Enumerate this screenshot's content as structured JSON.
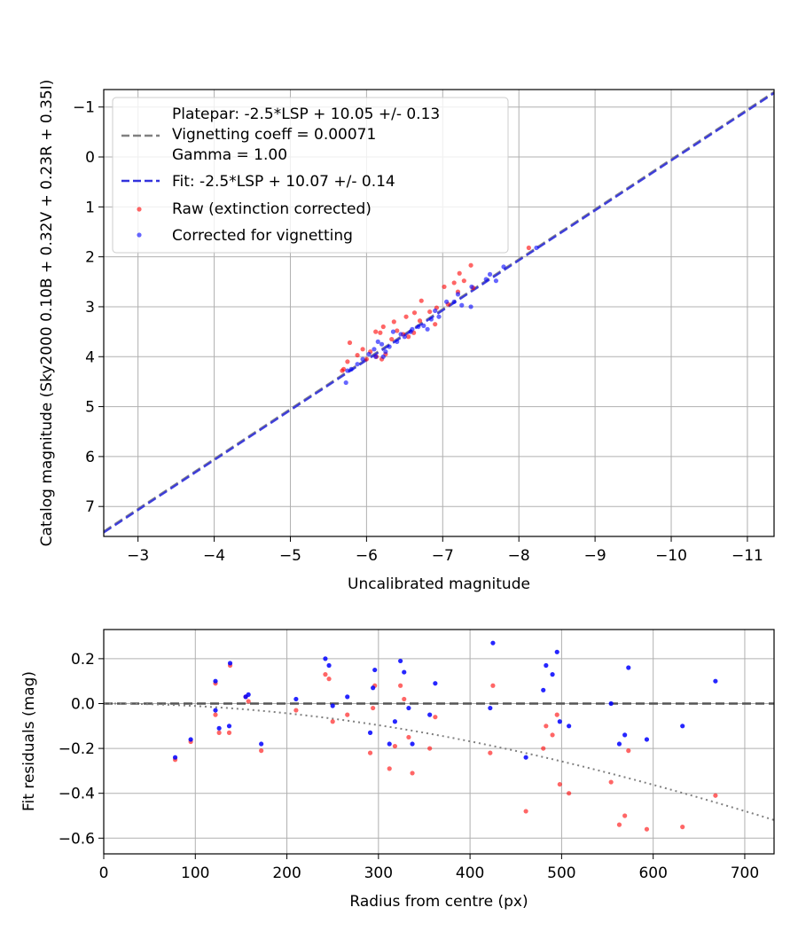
{
  "chart_data": [
    {
      "type": "scatter",
      "title": "",
      "xlabel": "Uncalibrated magnitude",
      "ylabel": "Catalog magnitude (Sky2000 0.10B + 0.32V + 0.23R + 0.35I)",
      "xlim": [
        -2.55,
        -11.35
      ],
      "ylim": [
        7.6,
        -1.35
      ],
      "x_ticks": [
        -3,
        -4,
        -5,
        -6,
        -7,
        -8,
        -9,
        -10,
        -11
      ],
      "x_tick_labels": [
        "−3",
        "−4",
        "−5",
        "−6",
        "−7",
        "−8",
        "−9",
        "−10",
        "−11"
      ],
      "y_ticks": [
        -1,
        0,
        1,
        2,
        3,
        4,
        5,
        6,
        7
      ],
      "y_tick_labels": [
        "−1",
        "0",
        "1",
        "2",
        "3",
        "4",
        "5",
        "6",
        "7"
      ],
      "grid": true,
      "legend_position": "top-left",
      "legend": {
        "platepar_lines": [
          "Platepar: -2.5*LSP + 10.05 +/- 0.13",
          "Vignetting coeff = 0.00071",
          "Gamma = 1.00"
        ],
        "fit": "Fit: -2.5*LSP + 10.07 +/- 0.14",
        "raw": "Raw (extinction corrected)",
        "corrected": "Corrected for vignetting"
      },
      "colors": {
        "platepar": "#808080",
        "fit": "#3232dc",
        "raw": "#ff0000",
        "corrected": "#0000ff"
      },
      "lines": [
        {
          "name": "Platepar",
          "slope": 1.0,
          "intercept": 10.05,
          "style": "dashed"
        },
        {
          "name": "Fit",
          "slope": 1.0,
          "intercept": 10.07,
          "style": "dashed"
        }
      ],
      "series": [
        {
          "name": "Raw (extinction corrected)",
          "points": [
            [
              -8.13,
              1.82
            ],
            [
              -7.37,
              2.17
            ],
            [
              -7.22,
              2.33
            ],
            [
              -7.28,
              2.48
            ],
            [
              -7.15,
              2.52
            ],
            [
              -7.02,
              2.6
            ],
            [
              -7.2,
              2.7
            ],
            [
              -7.4,
              2.62
            ],
            [
              -6.72,
              2.88
            ],
            [
              -7.07,
              2.95
            ],
            [
              -6.92,
              3.02
            ],
            [
              -6.83,
              3.1
            ],
            [
              -6.63,
              3.12
            ],
            [
              -6.52,
              3.2
            ],
            [
              -6.7,
              3.28
            ],
            [
              -6.36,
              3.3
            ],
            [
              -6.22,
              3.4
            ],
            [
              -6.4,
              3.48
            ],
            [
              -6.18,
              3.52
            ],
            [
              -6.12,
              3.5
            ],
            [
              -6.33,
              3.65
            ],
            [
              -6.48,
              3.55
            ],
            [
              -6.62,
              3.52
            ],
            [
              -5.78,
              3.72
            ],
            [
              -5.95,
              3.85
            ],
            [
              -6.05,
              3.9
            ],
            [
              -5.88,
              3.97
            ],
            [
              -6.13,
              4.0
            ],
            [
              -6.25,
              3.95
            ],
            [
              -6.2,
              4.05
            ],
            [
              -5.75,
              4.1
            ],
            [
              -5.7,
              4.25
            ],
            [
              -5.68,
              4.28
            ],
            [
              -6.0,
              4.05
            ],
            [
              -6.55,
              3.6
            ],
            [
              -6.9,
              3.35
            ]
          ]
        },
        {
          "name": "Corrected for vignetting",
          "points": [
            [
              -8.23,
              1.82
            ],
            [
              -7.8,
              2.2
            ],
            [
              -7.62,
              2.35
            ],
            [
              -7.7,
              2.48
            ],
            [
              -7.57,
              2.45
            ],
            [
              -7.38,
              2.6
            ],
            [
              -7.2,
              2.75
            ],
            [
              -7.37,
              3.0
            ],
            [
              -7.25,
              2.97
            ],
            [
              -7.05,
              2.9
            ],
            [
              -6.9,
              3.08
            ],
            [
              -6.85,
              3.25
            ],
            [
              -6.75,
              3.38
            ],
            [
              -6.68,
              3.4
            ],
            [
              -6.8,
              3.45
            ],
            [
              -6.58,
              3.5
            ],
            [
              -6.45,
              3.55
            ],
            [
              -6.35,
              3.5
            ],
            [
              -6.4,
              3.7
            ],
            [
              -6.3,
              3.8
            ],
            [
              -6.2,
              3.75
            ],
            [
              -6.15,
              3.7
            ],
            [
              -6.1,
              3.85
            ],
            [
              -6.25,
              3.9
            ],
            [
              -6.03,
              3.95
            ],
            [
              -6.12,
              4.0
            ],
            [
              -5.95,
              4.05
            ],
            [
              -5.88,
              4.15
            ],
            [
              -5.8,
              4.25
            ],
            [
              -5.75,
              4.28
            ],
            [
              -5.73,
              4.52
            ],
            [
              -6.22,
              4.0
            ],
            [
              -6.5,
              3.6
            ],
            [
              -6.95,
              3.2
            ],
            [
              -7.15,
              2.9
            ],
            [
              -6.6,
              3.45
            ]
          ]
        }
      ]
    },
    {
      "type": "scatter",
      "title": "",
      "xlabel": "Radius from centre (px)",
      "ylabel": "Fit residuals (mag)",
      "xlim": [
        0,
        732
      ],
      "ylim": [
        -0.67,
        0.33
      ],
      "x_ticks": [
        0,
        100,
        200,
        300,
        400,
        500,
        600,
        700
      ],
      "x_tick_labels": [
        "0",
        "100",
        "200",
        "300",
        "400",
        "500",
        "600",
        "700"
      ],
      "y_ticks": [
        0.2,
        0.0,
        -0.2,
        -0.4,
        -0.6
      ],
      "y_tick_labels": [
        "0.2",
        "0.0",
        "−0.2",
        "−0.4",
        "−0.6"
      ],
      "grid": true,
      "reference_line": 0.0,
      "vignetting_curve": {
        "coeff": 0.00071,
        "x_max": 732
      },
      "colors": {
        "zero_line": "#555555",
        "curve": "#808080",
        "raw": "#ff0000",
        "corrected": "#0000ff"
      },
      "series": [
        {
          "name": "Raw (extinction corrected)",
          "points": [
            [
              78,
              -0.25
            ],
            [
              95,
              -0.17
            ],
            [
              122,
              0.09
            ],
            [
              122,
              -0.05
            ],
            [
              126,
              -0.13
            ],
            [
              137,
              -0.13
            ],
            [
              138,
              0.17
            ],
            [
              155,
              0.03
            ],
            [
              158,
              0.01
            ],
            [
              172,
              -0.21
            ],
            [
              210,
              -0.03
            ],
            [
              242,
              0.13
            ],
            [
              246,
              0.11
            ],
            [
              250,
              -0.08
            ],
            [
              266,
              -0.05
            ],
            [
              291,
              -0.22
            ],
            [
              294,
              -0.02
            ],
            [
              296,
              0.08
            ],
            [
              312,
              -0.29
            ],
            [
              318,
              -0.19
            ],
            [
              324,
              0.08
            ],
            [
              328,
              0.02
            ],
            [
              333,
              -0.15
            ],
            [
              337,
              -0.31
            ],
            [
              356,
              -0.2
            ],
            [
              362,
              -0.06
            ],
            [
              422,
              -0.22
            ],
            [
              425,
              0.08
            ],
            [
              461,
              -0.48
            ],
            [
              480,
              -0.2
            ],
            [
              483,
              -0.1
            ],
            [
              490,
              -0.14
            ],
            [
              495,
              -0.05
            ],
            [
              498,
              -0.36
            ],
            [
              508,
              -0.4
            ],
            [
              554,
              -0.35
            ],
            [
              563,
              -0.54
            ],
            [
              569,
              -0.5
            ],
            [
              573,
              -0.21
            ],
            [
              593,
              -0.56
            ],
            [
              632,
              -0.55
            ],
            [
              668,
              -0.41
            ]
          ]
        },
        {
          "name": "Corrected for vignetting",
          "points": [
            [
              78,
              -0.24
            ],
            [
              95,
              -0.16
            ],
            [
              122,
              0.1
            ],
            [
              122,
              -0.03
            ],
            [
              126,
              -0.11
            ],
            [
              137,
              -0.1
            ],
            [
              138,
              0.18
            ],
            [
              155,
              0.03
            ],
            [
              158,
              0.04
            ],
            [
              172,
              -0.18
            ],
            [
              210,
              0.02
            ],
            [
              242,
              0.2
            ],
            [
              246,
              0.17
            ],
            [
              250,
              -0.01
            ],
            [
              266,
              0.03
            ],
            [
              291,
              -0.13
            ],
            [
              294,
              0.07
            ],
            [
              296,
              0.15
            ],
            [
              312,
              -0.18
            ],
            [
              318,
              -0.08
            ],
            [
              324,
              0.19
            ],
            [
              328,
              0.14
            ],
            [
              333,
              -0.02
            ],
            [
              337,
              -0.18
            ],
            [
              356,
              -0.05
            ],
            [
              362,
              0.09
            ],
            [
              422,
              -0.02
            ],
            [
              425,
              0.27
            ],
            [
              461,
              -0.24
            ],
            [
              480,
              0.06
            ],
            [
              483,
              0.17
            ],
            [
              490,
              0.13
            ],
            [
              495,
              0.23
            ],
            [
              498,
              -0.08
            ],
            [
              508,
              -0.1
            ],
            [
              554,
              0.0
            ],
            [
              563,
              -0.18
            ],
            [
              569,
              -0.14
            ],
            [
              573,
              0.16
            ],
            [
              593,
              -0.16
            ],
            [
              632,
              -0.1
            ],
            [
              668,
              0.1
            ]
          ]
        }
      ]
    }
  ]
}
